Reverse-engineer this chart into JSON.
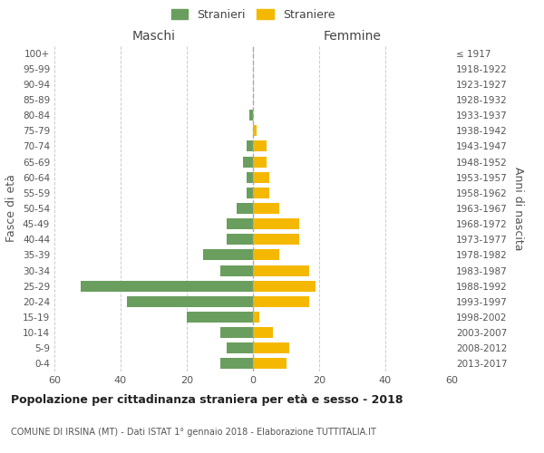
{
  "age_groups": [
    "0-4",
    "5-9",
    "10-14",
    "15-19",
    "20-24",
    "25-29",
    "30-34",
    "35-39",
    "40-44",
    "45-49",
    "50-54",
    "55-59",
    "60-64",
    "65-69",
    "70-74",
    "75-79",
    "80-84",
    "85-89",
    "90-94",
    "95-99",
    "100+"
  ],
  "birth_years": [
    "2013-2017",
    "2008-2012",
    "2003-2007",
    "1998-2002",
    "1993-1997",
    "1988-1992",
    "1983-1987",
    "1978-1982",
    "1973-1977",
    "1968-1972",
    "1963-1967",
    "1958-1962",
    "1953-1957",
    "1948-1952",
    "1943-1947",
    "1938-1942",
    "1933-1937",
    "1928-1932",
    "1923-1927",
    "1918-1922",
    "≤ 1917"
  ],
  "maschi": [
    10,
    8,
    10,
    20,
    38,
    52,
    10,
    15,
    8,
    8,
    5,
    2,
    2,
    3,
    2,
    0,
    1,
    0,
    0,
    0,
    0
  ],
  "femmine": [
    10,
    11,
    6,
    2,
    17,
    19,
    17,
    8,
    14,
    14,
    8,
    5,
    5,
    4,
    4,
    1,
    0,
    0,
    0,
    0,
    0
  ],
  "maschi_color": "#6a9e5e",
  "femmine_color": "#f5b800",
  "title": "Popolazione per cittadinanza straniera per età e sesso - 2018",
  "subtitle": "COMUNE DI IRSINA (MT) - Dati ISTAT 1° gennaio 2018 - Elaborazione TUTTITALIA.IT",
  "ylabel_left": "Fasce di età",
  "ylabel_right": "Anni di nascita",
  "xlabel_left": "Maschi",
  "xlabel_right": "Femmine",
  "legend_stranieri": "Stranieri",
  "legend_straniere": "Straniere",
  "xlim": 60,
  "background_color": "#ffffff",
  "grid_color": "#cccccc"
}
